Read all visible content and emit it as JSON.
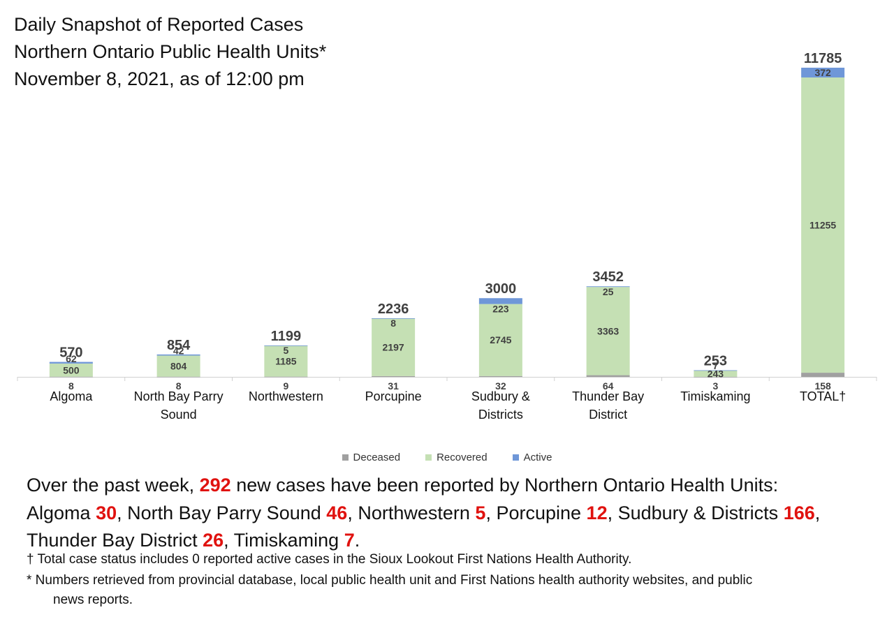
{
  "title": {
    "line1": "Daily Snapshot of Reported Cases",
    "line2": "Northern Ontario Public Health Units*",
    "line3": "November 8, 2021, as of 12:00 pm"
  },
  "colors": {
    "deceased": "#a0a0a0",
    "recovered": "#c5e0b4",
    "active": "#6f97d8",
    "highlight": "#e0120f"
  },
  "chart_data": {
    "type": "bar",
    "stacked": true,
    "categories": [
      "Algoma",
      "North Bay Parry Sound",
      "Northwestern",
      "Porcupine",
      "Sudbury & Districts",
      "Thunder Bay District",
      "Timiskaming",
      "TOTAL†"
    ],
    "category_lines": [
      [
        "Algoma"
      ],
      [
        "North Bay Parry",
        "Sound"
      ],
      [
        "Northwestern"
      ],
      [
        "Porcupine"
      ],
      [
        "Sudbury &",
        "Districts"
      ],
      [
        "Thunder Bay",
        "District"
      ],
      [
        "Timiskaming"
      ],
      [
        "TOTAL†"
      ]
    ],
    "series": [
      {
        "name": "Deceased",
        "values": [
          8,
          8,
          9,
          31,
          32,
          64,
          3,
          158
        ]
      },
      {
        "name": "Recovered",
        "values": [
          500,
          804,
          1185,
          2197,
          2745,
          3363,
          243,
          11255
        ]
      },
      {
        "name": "Active",
        "values": [
          62,
          42,
          5,
          8,
          223,
          25,
          7,
          372
        ]
      }
    ],
    "totals": [
      570,
      854,
      1199,
      2236,
      3000,
      3452,
      253,
      11785
    ],
    "ylim": [
      0,
      11785
    ],
    "grid": false,
    "legend_position": "bottom"
  },
  "legend": [
    {
      "label": "Deceased",
      "color": "#a0a0a0"
    },
    {
      "label": "Recovered",
      "color": "#c5e0b4"
    },
    {
      "label": "Active",
      "color": "#6f97d8"
    }
  ],
  "summary": {
    "part1": "Over the past week, ",
    "total_new": "292",
    "part2": " new cases have been reported by Northern Ontario Health Units:",
    "units": [
      {
        "name": "Algoma ",
        "count": "30",
        "sep": ", "
      },
      {
        "name": "North Bay Parry Sound ",
        "count": "46",
        "sep": ", "
      },
      {
        "name": "Northwestern ",
        "count": "5",
        "sep": ", "
      },
      {
        "name": "Porcupine ",
        "count": "12",
        "sep": ", "
      },
      {
        "name": "Sudbury & Districts ",
        "count": "166",
        "sep": ", "
      },
      {
        "name": "Thunder Bay District ",
        "count": "26",
        "sep": ", "
      },
      {
        "name": "Timiskaming ",
        "count": "7",
        "sep": "."
      }
    ]
  },
  "footnotes": {
    "dagger": "† Total case status includes 0 reported active cases in the Sioux Lookout First Nations Health Authority.",
    "star_line1": "* Numbers retrieved from provincial database, local public health unit and First Nations health authority websites, and public",
    "star_line2": "news reports."
  }
}
